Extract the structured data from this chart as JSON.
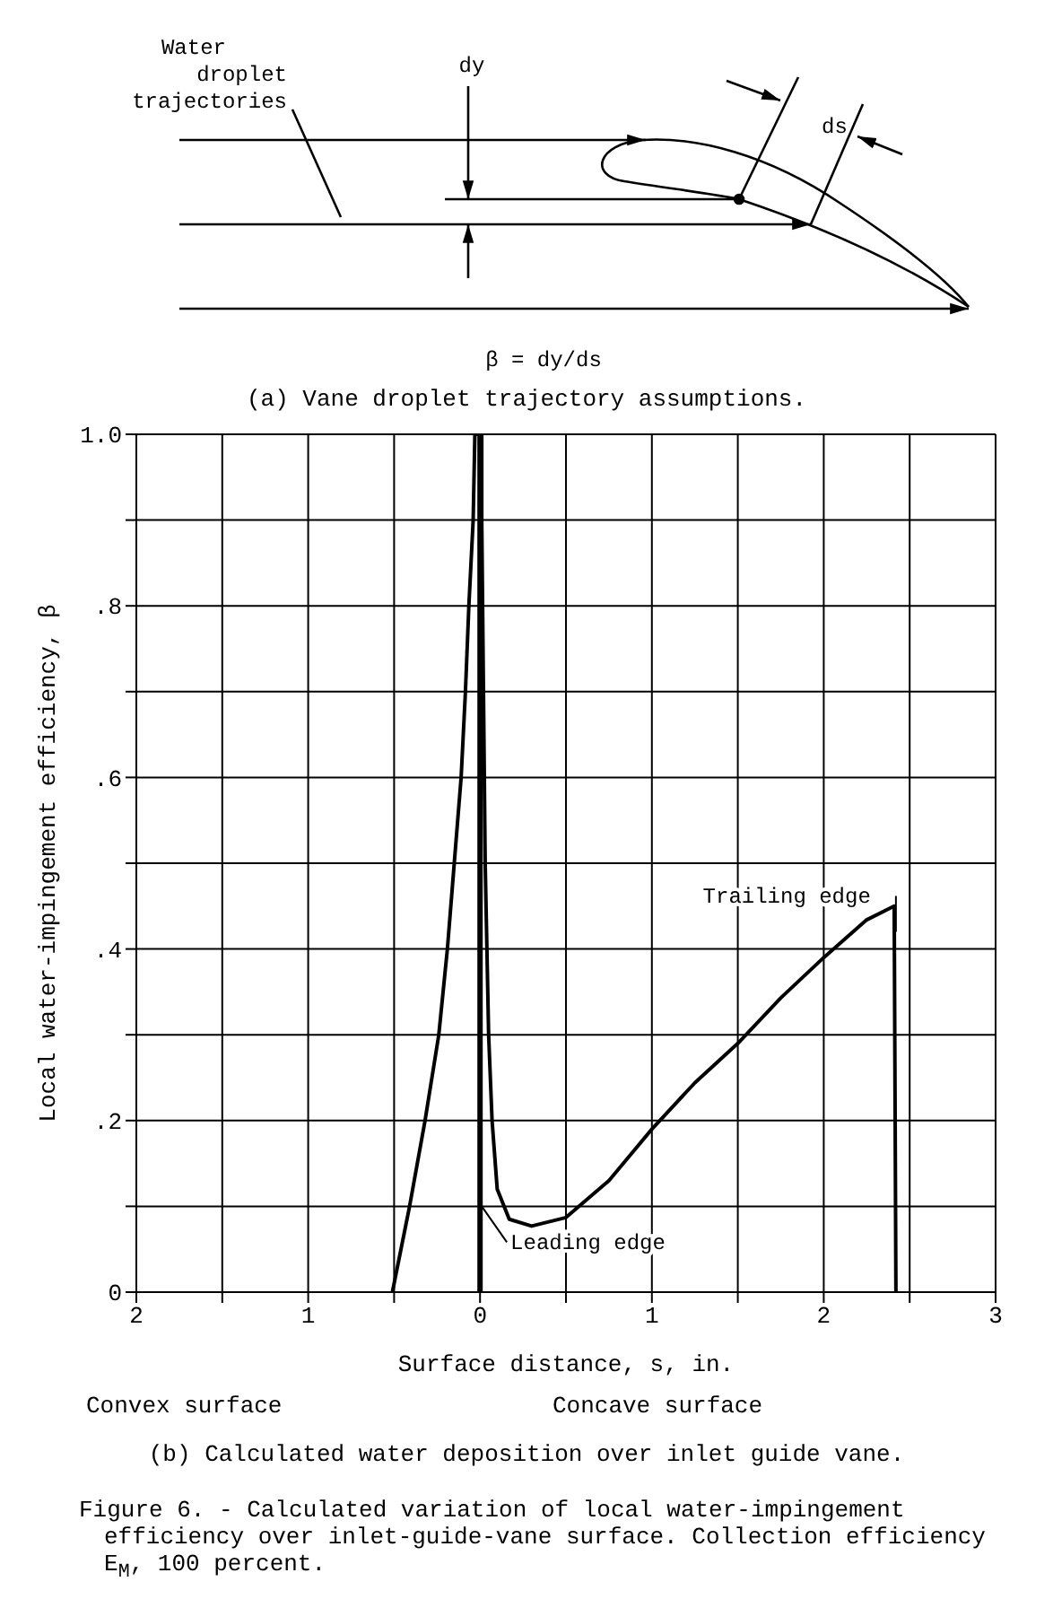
{
  "chart_data": {
    "type": "line",
    "xlabel": "Surface distance, s, in.",
    "ylabel": "Local water-impingement efficiency, β",
    "x": [
      -0.51,
      -0.41,
      -0.32,
      -0.24,
      -0.19,
      -0.15,
      -0.11,
      -0.085,
      -0.065,
      -0.04,
      -0.03,
      0.01,
      0.01,
      0.03,
      0.05,
      0.07,
      0.1,
      0.17,
      0.3,
      0.5,
      0.75,
      1.0,
      1.25,
      1.5,
      1.75,
      2.0,
      2.25,
      2.41,
      2.42
    ],
    "series": [
      {
        "color": "#000000",
        "values": [
          0,
          0.1,
          0.2,
          0.3,
          0.4,
          0.5,
          0.6,
          0.7,
          0.8,
          0.9,
          1.0,
          1.0,
          0.9,
          0.5,
          0.3,
          0.2,
          0.12,
          0.085,
          0.077,
          0.087,
          0.13,
          0.19,
          0.244,
          0.29,
          0.343,
          0.39,
          0.434,
          0.45,
          0
        ]
      }
    ],
    "xlim": [
      -2,
      3
    ],
    "xticks": [
      {
        "value": -2,
        "label": "2"
      },
      {
        "value": -1.5,
        "label": null
      },
      {
        "value": -1,
        "label": "1"
      },
      {
        "value": -0.5,
        "label": null
      },
      0,
      {
        "value": 0.5,
        "label": null
      },
      1,
      {
        "value": 1.5,
        "label": null
      },
      2,
      {
        "value": 2.5,
        "label": null
      },
      3
    ],
    "ylim": [
      0,
      1
    ],
    "yticks": [
      0,
      {
        "value": 0.1,
        "label": null
      },
      {
        "value": 0.2,
        "label": ".2"
      },
      {
        "value": 0.3,
        "label": null
      },
      {
        "value": 0.4,
        "label": ".4"
      },
      {
        "value": 0.5,
        "label": null
      },
      {
        "value": 0.6,
        "label": ".6"
      },
      {
        "value": 0.7,
        "label": null
      },
      {
        "value": 0.8,
        "label": ".8"
      },
      {
        "value": 0.9,
        "label": null
      },
      {
        "value": 1,
        "label": "1.0"
      }
    ],
    "grid": true,
    "marker": "none",
    "line_style": "solid",
    "ref_lines": [
      {
        "axis": "x",
        "value": 0,
        "label": null
      }
    ],
    "annotations": [
      "Water droplet trajectories",
      "dy",
      "ds",
      "β = dy/ds",
      "(a) Vane droplet trajectory assumptions.",
      {
        "text": "Leading edge",
        "x": 0.01,
        "y": 0.1
      },
      {
        "text": "Trailing edge",
        "x": 2.42,
        "y": 0.42
      },
      "Convex surface",
      "Concave surface",
      "(b) Calculated water deposition over inlet guide vane.",
      "Figure 6. - Calculated variation of local water-impingement efficiency over inlet-guide-vane surface. Collection efficiency E$_{M}$, 100 percent."
    ]
  }
}
